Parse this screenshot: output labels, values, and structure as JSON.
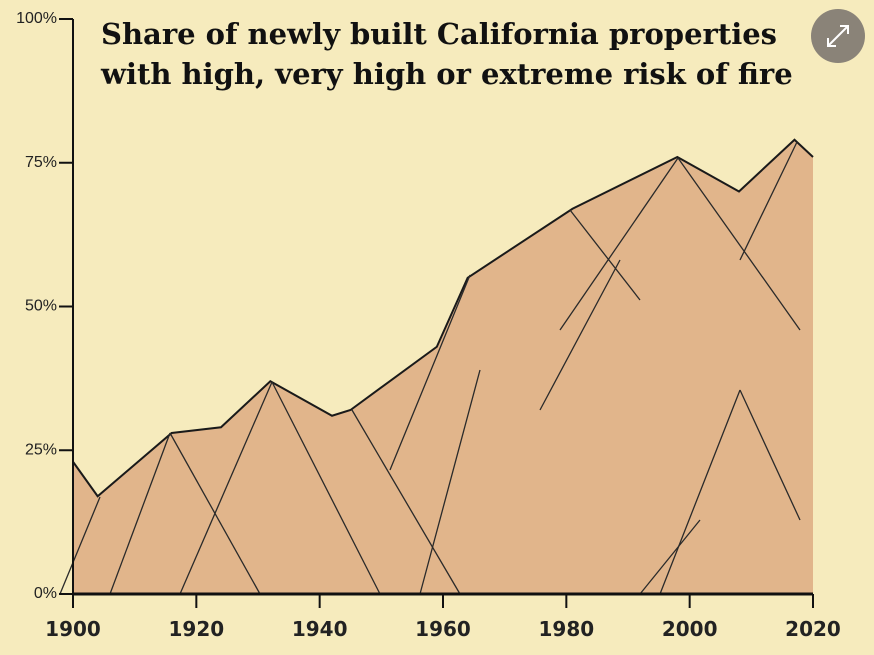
{
  "chart_data": {
    "type": "area",
    "title": [
      "Share of newly built California properties",
      "with high, very high or extreme risk of fire"
    ],
    "x": [
      1900,
      1904,
      1916,
      1924,
      1932,
      1942,
      1945,
      1959,
      1964,
      1981,
      1998,
      2008,
      2017,
      2020
    ],
    "values": [
      23,
      17,
      28,
      29,
      37,
      31,
      32,
      43,
      55,
      67,
      76,
      70,
      79,
      76
    ],
    "color": "#e1b58b",
    "xlim": [
      1900,
      2020
    ],
    "ylim": [
      0,
      100
    ],
    "xticks": [
      1900,
      1920,
      1940,
      1960,
      1980,
      2000,
      2020
    ],
    "yticks": [
      {
        "value": 0,
        "label": "0%"
      },
      {
        "value": 25,
        "label": "25%"
      },
      {
        "value": 50,
        "label": "50%"
      },
      {
        "value": 75,
        "label": "75%"
      },
      {
        "value": 100,
        "label": "100%"
      }
    ]
  }
}
